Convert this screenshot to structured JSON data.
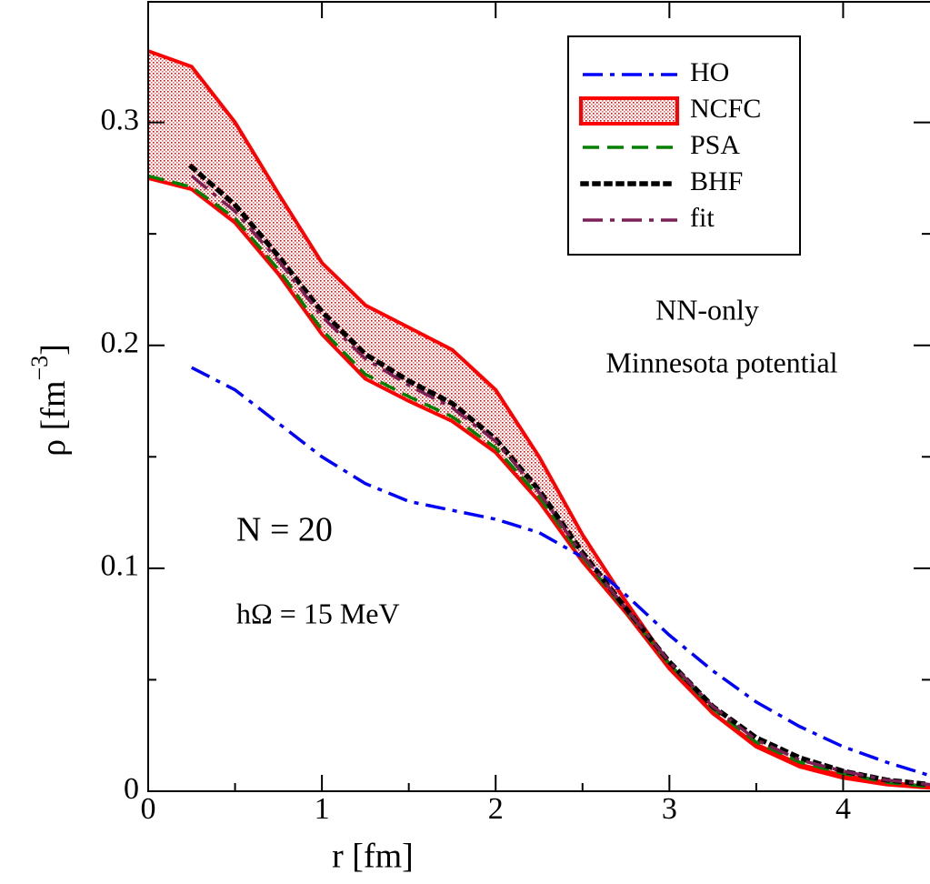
{
  "chart_data": {
    "type": "line",
    "xlabel": "r  [fm]",
    "ylabel": "ρ [fm",
    "ylabel_sup": "−3",
    "ylabel_end": "]",
    "annotations": [
      "NN-only",
      "Minnesota potential",
      "N = 20",
      "hΩ = 15 MeV"
    ],
    "x": [
      0,
      0.25,
      0.5,
      0.75,
      1.0,
      1.25,
      1.5,
      1.75,
      2.0,
      2.25,
      2.5,
      2.75,
      3.0,
      3.25,
      3.5,
      3.75,
      4.0,
      4.25,
      4.5
    ],
    "series": [
      {
        "name": "HO",
        "color": "#0000ff",
        "dash": "dashdot",
        "values": [
          null,
          0.19,
          0.18,
          0.165,
          0.15,
          0.138,
          0.13,
          0.126,
          0.122,
          0.116,
          0.105,
          0.088,
          0.07,
          0.054,
          0.04,
          0.029,
          0.02,
          0.013,
          0.007
        ]
      },
      {
        "name": "NCFC",
        "color": "#ff0000",
        "dash": "band",
        "upper": [
          0.332,
          0.325,
          0.3,
          0.268,
          0.237,
          0.218,
          0.208,
          0.198,
          0.18,
          0.15,
          0.115,
          0.085,
          0.057,
          0.035,
          0.021,
          0.012,
          0.007,
          0.004,
          0.002
        ],
        "lower": [
          0.275,
          0.27,
          0.255,
          0.232,
          0.205,
          0.185,
          0.175,
          0.166,
          0.152,
          0.13,
          0.103,
          0.08,
          0.055,
          0.035,
          0.02,
          0.011,
          0.006,
          0.003,
          0.0015
        ]
      },
      {
        "name": "PSA",
        "color": "#008000",
        "dash": "dash",
        "values": [
          0.276,
          0.271,
          0.257,
          0.234,
          0.207,
          0.187,
          0.177,
          0.168,
          0.154,
          0.132,
          0.105,
          0.081,
          0.057,
          0.037,
          0.022,
          0.013,
          0.008,
          0.004,
          0.002
        ]
      },
      {
        "name": "BHF",
        "color": "#000000",
        "dash": "dot",
        "values": [
          null,
          0.28,
          0.263,
          0.24,
          0.215,
          0.196,
          0.184,
          0.174,
          0.158,
          0.135,
          0.107,
          0.082,
          0.058,
          0.038,
          0.024,
          0.015,
          0.009,
          0.005,
          0.003
        ]
      },
      {
        "name": "fit",
        "color": "#7b1f55",
        "dash": "dashdot",
        "values": [
          null,
          0.276,
          0.26,
          0.238,
          0.213,
          0.194,
          0.182,
          0.172,
          0.157,
          0.134,
          0.106,
          0.082,
          0.058,
          0.038,
          0.023,
          0.014,
          0.009,
          0.005,
          0.003
        ]
      }
    ],
    "xlim": [
      0,
      4.5
    ],
    "xticks": [
      0,
      1,
      2,
      3,
      4
    ],
    "xminorticks": [
      0.5,
      1.5,
      2.5,
      3.5
    ],
    "ylim": [
      0,
      0.35
    ],
    "yticks": [
      0,
      0.1,
      0.2,
      0.3
    ],
    "yminorticks": [
      0.05,
      0.15,
      0.25
    ],
    "grid": false,
    "legend": "upper right"
  }
}
